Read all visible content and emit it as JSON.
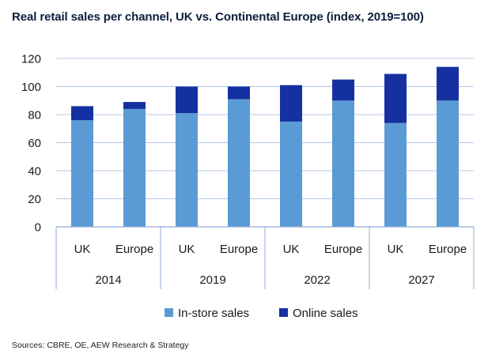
{
  "title": "Real retail sales per channel, UK vs. Continental Europe (index, 2019=100)",
  "source": "Sources: CBRE, OE, AEW Research & Strategy",
  "colors": {
    "in_store": "#5b9bd5",
    "online": "#1530a0",
    "grid": "#b4c7e7",
    "axis": "#8eaadb"
  },
  "chart_data": {
    "type": "bar",
    "stacked": true,
    "title": "Real retail sales per channel, UK vs. Continental Europe (index, 2019=100)",
    "groups": [
      "2014",
      "2019",
      "2022",
      "2027"
    ],
    "categories": [
      "UK",
      "Europe",
      "UK",
      "Europe",
      "UK",
      "Europe",
      "UK",
      "Europe"
    ],
    "group_of_category": [
      0,
      0,
      1,
      1,
      2,
      2,
      3,
      3
    ],
    "series": [
      {
        "name": "In-store sales",
        "color": "#5b9bd5",
        "values": [
          76,
          84,
          81,
          91,
          75,
          90,
          74,
          90
        ]
      },
      {
        "name": "Online sales",
        "color": "#1530a0",
        "values": [
          10,
          5,
          19,
          9,
          26,
          15,
          35,
          24
        ]
      }
    ],
    "ylim": [
      0,
      120
    ],
    "yticks": [
      0,
      20,
      40,
      60,
      80,
      100,
      120
    ],
    "grid": true,
    "legend": "bottom"
  }
}
